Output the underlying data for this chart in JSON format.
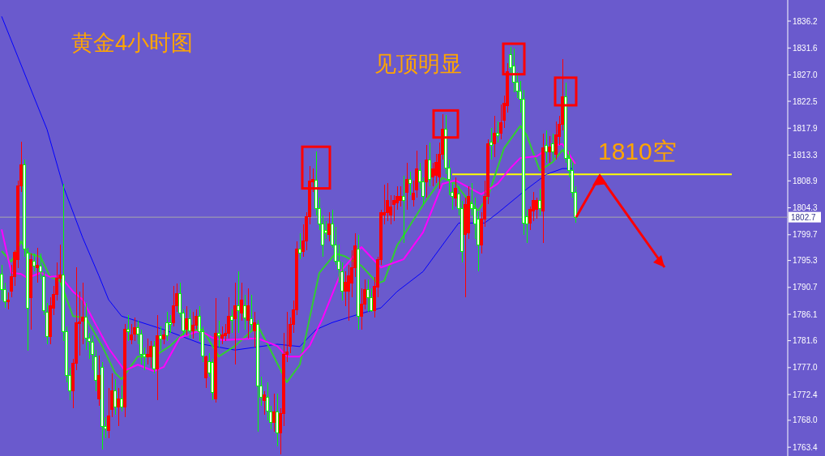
{
  "chart_data": {
    "type": "candlestick",
    "title": "黄金4小时图",
    "annotations": [
      "见顶明显"
    ],
    "tick_labels": "y",
    "categories": [
      null,
      null,
      null,
      null,
      null,
      null,
      null,
      null,
      null,
      null,
      null,
      null,
      null,
      null,
      null,
      null,
      null,
      null,
      null,
      null,
      null,
      null,
      null,
      null,
      null,
      null,
      null,
      null,
      null,
      null,
      null,
      null,
      null,
      null,
      null,
      null,
      null,
      null,
      null,
      null,
      null,
      null,
      null,
      null,
      null,
      null,
      null,
      null,
      null,
      null,
      null,
      null,
      null,
      null,
      null,
      null,
      null,
      null,
      null,
      null,
      null,
      null,
      null,
      null,
      null,
      null,
      null,
      null,
      null,
      null,
      null,
      null,
      null,
      null,
      null,
      null,
      null,
      null,
      null,
      null,
      null,
      null,
      null,
      null,
      null,
      null,
      null,
      null,
      null,
      null,
      null,
      null,
      null,
      null,
      null,
      null,
      null,
      null,
      null,
      null,
      null,
      null,
      null,
      null,
      null,
      null,
      null,
      null,
      null,
      null,
      null,
      null,
      null,
      null,
      null,
      null,
      null,
      null,
      null,
      null,
      null,
      null,
      null,
      null,
      null,
      null,
      null,
      null,
      null,
      null,
      null,
      null,
      null,
      null,
      null,
      null,
      null,
      null,
      null,
      null,
      null,
      null,
      null,
      null,
      null,
      null,
      null,
      null,
      null,
      null,
      null,
      null,
      null,
      null,
      null,
      null,
      null,
      null,
      null,
      null,
      null,
      null,
      null,
      null,
      null,
      null,
      null,
      null,
      null,
      null,
      null,
      null,
      null,
      null,
      null,
      null,
      null,
      null,
      null,
      null,
      null,
      null,
      null,
      null,
      null,
      null,
      null,
      null,
      null,
      null,
      null,
      null,
      null,
      null,
      null,
      null,
      null,
      null,
      null,
      null,
      null,
      null,
      null,
      null,
      null,
      null,
      null,
      null,
      null,
      null,
      null,
      null,
      null,
      null,
      null,
      null,
      null,
      null,
      null,
      null,
      null,
      null,
      null,
      null,
      null,
      null,
      null,
      null,
      null,
      null,
      null,
      null,
      null,
      null,
      null,
      null,
      null,
      null,
      null,
      null,
      null,
      null,
      null
    ],
    "ohlc": [
      [
        1793.0,
        1794.5,
        1788.5,
        1790.4
      ],
      [
        1790.4,
        1791.5,
        1787.2,
        1788.3
      ],
      [
        1788.2,
        1789.8,
        1787.0,
        1788.6
      ],
      [
        1790.0,
        1794.5,
        1789.0,
        1792.5
      ],
      [
        1792.5,
        1797.0,
        1791.0,
        1796.7
      ],
      [
        1795.5,
        1809.0,
        1794.0,
        1808.0
      ],
      [
        1808.0,
        1815.6,
        1807.0,
        1811.7
      ],
      [
        1811.7,
        1812.5,
        1796.0,
        1797.3
      ],
      [
        1796.6,
        1797.5,
        1779.9,
        1787.2
      ],
      [
        1789.0,
        1796.5,
        1783.5,
        1795.5
      ],
      [
        1795.2,
        1796.5,
        1793.5,
        1794.4
      ],
      [
        1794.1,
        1797.5,
        1791.5,
        1794.5
      ],
      [
        1794.4,
        1796.5,
        1792.0,
        1793.4
      ],
      [
        1792.5,
        1793.5,
        1786.0,
        1786.8
      ],
      [
        1786.5,
        1788.0,
        1781.0,
        1782.3
      ],
      [
        1782.3,
        1789.0,
        1781.0,
        1787.5
      ],
      [
        1787.2,
        1791.0,
        1786.0,
        1789.5
      ],
      [
        1789.5,
        1795.0,
        1788.5,
        1792.3
      ],
      [
        1792.3,
        1798.0,
        1791.5,
        1792.8
      ],
      [
        1792.8,
        1808.4,
        1781.5,
        1783.1
      ],
      [
        1783.1,
        1784.0,
        1774.5,
        1775.6
      ],
      [
        1775.6,
        1777.0,
        1771.5,
        1773.0
      ],
      [
        1773.0,
        1778.5,
        1770.0,
        1777.8
      ],
      [
        1777.8,
        1794.1,
        1776.5,
        1784.7
      ],
      [
        1784.5,
        1790.0,
        1779.0,
        1784.8
      ],
      [
        1785.0,
        1791.5,
        1781.0,
        1785.6
      ],
      [
        1785.6,
        1788.0,
        1780.0,
        1782.0
      ],
      [
        1782.0,
        1783.0,
        1778.5,
        1781.5
      ],
      [
        1781.3,
        1782.5,
        1776.5,
        1779.2
      ],
      [
        1778.9,
        1780.0,
        1773.0,
        1774.9
      ],
      [
        1771.6,
        1779.0,
        1770.5,
        1775.6
      ],
      [
        1777.1,
        1778.0,
        1763.0,
        1766.9
      ],
      [
        1766.9,
        1768.5,
        1765.0,
        1766.5
      ],
      [
        1766.2,
        1773.5,
        1765.0,
        1768.8
      ],
      [
        1769.9,
        1776.0,
        1768.5,
        1773.1
      ],
      [
        1773.1,
        1775.0,
        1769.0,
        1770.3
      ],
      [
        1770.3,
        1773.5,
        1767.0,
        1771.6
      ],
      [
        1771.6,
        1774.0,
        1769.5,
        1770.3
      ],
      [
        1770.3,
        1784.5,
        1768.5,
        1783.5
      ],
      [
        1783.5,
        1786.0,
        1781.5,
        1783.2
      ],
      [
        1781.7,
        1784.5,
        1781.0,
        1782.6
      ],
      [
        1782.7,
        1785.5,
        1781.5,
        1783.8
      ],
      [
        1783.8,
        1785.0,
        1781.0,
        1782.7
      ],
      [
        1782.7,
        1783.5,
        1777.5,
        1779.2
      ],
      [
        1779.2,
        1780.5,
        1776.5,
        1778.9
      ],
      [
        1778.9,
        1782.0,
        1777.5,
        1779.3
      ],
      [
        1778.9,
        1781.5,
        1777.0,
        1780.7
      ],
      [
        1780.7,
        1781.5,
        1776.0,
        1776.8
      ],
      [
        1776.8,
        1786.0,
        1771.5,
        1782.4
      ],
      [
        1782.4,
        1784.0,
        1780.0,
        1781.9
      ],
      [
        1781.9,
        1783.5,
        1781.0,
        1782.6
      ],
      [
        1784.7,
        1786.5,
        1781.5,
        1782.4
      ],
      [
        1784.7,
        1786.0,
        1783.0,
        1784.4
      ],
      [
        1784.7,
        1791.0,
        1784.0,
        1787.6
      ],
      [
        1787.6,
        1791.4,
        1786.5,
        1789.6
      ],
      [
        1789.6,
        1791.5,
        1785.5,
        1786.3
      ],
      [
        1786.3,
        1787.0,
        1782.5,
        1783.3
      ],
      [
        1783.5,
        1787.5,
        1782.5,
        1785.4
      ],
      [
        1785.4,
        1787.0,
        1782.0,
        1783.3
      ],
      [
        1783.3,
        1786.5,
        1782.0,
        1784.2
      ],
      [
        1784.2,
        1787.0,
        1783.5,
        1785.8
      ],
      [
        1785.8,
        1787.5,
        1781.5,
        1783.1
      ],
      [
        1783.1,
        1784.0,
        1778.0,
        1779.0
      ],
      [
        1775.3,
        1779.0,
        1773.5,
        1778.8
      ],
      [
        1778.0,
        1779.5,
        1775.5,
        1776.1
      ],
      [
        1777.9,
        1778.5,
        1771.5,
        1772.7
      ],
      [
        1771.6,
        1788.9,
        1771.0,
        1782.8
      ],
      [
        1782.8,
        1785.0,
        1780.5,
        1782.4
      ],
      [
        1782.0,
        1784.0,
        1781.0,
        1782.6
      ],
      [
        1782.4,
        1784.5,
        1781.5,
        1782.8
      ],
      [
        1782.8,
        1789.0,
        1782.0,
        1785.8
      ],
      [
        1785.8,
        1787.0,
        1783.0,
        1785.1
      ],
      [
        1785.4,
        1791.5,
        1777.5,
        1787.6
      ],
      [
        1787.6,
        1793.5,
        1783.0,
        1786.8
      ],
      [
        1786.3,
        1791.5,
        1785.0,
        1788.6
      ],
      [
        1787.5,
        1789.5,
        1783.5,
        1785.5
      ],
      [
        1785.1,
        1790.5,
        1782.0,
        1787.6
      ],
      [
        1785.4,
        1789.5,
        1783.5,
        1784.4
      ],
      [
        1783.3,
        1786.5,
        1780.5,
        1784.7
      ],
      [
        1784.4,
        1785.2,
        1766.0,
        1773.8
      ],
      [
        1773.8,
        1775.5,
        1770.5,
        1772.0
      ],
      [
        1771.4,
        1773.0,
        1769.0,
        1772.4
      ],
      [
        1772.0,
        1774.5,
        1768.0,
        1769.6
      ],
      [
        1769.5,
        1770.5,
        1766.5,
        1767.6
      ],
      [
        1767.6,
        1772.5,
        1766.0,
        1769.5
      ],
      [
        1769.5,
        1772.5,
        1763.5,
        1765.8
      ],
      [
        1765.8,
        1770.0,
        1762.2,
        1769.2
      ],
      [
        1769.2,
        1783.0,
        1767.0,
        1779.3
      ],
      [
        1779.3,
        1786.5,
        1778.0,
        1779.7
      ],
      [
        1780.7,
        1785.5,
        1779.5,
        1784.4
      ],
      [
        1784.4,
        1788.5,
        1783.0,
        1786.9
      ],
      [
        1786.9,
        1798.5,
        1786.0,
        1797.3
      ],
      [
        1797.2,
        1800.0,
        1795.5,
        1796.6
      ],
      [
        1796.9,
        1801.5,
        1796.0,
        1798.6
      ],
      [
        1798.6,
        1803.5,
        1797.0,
        1802.8
      ],
      [
        1802.8,
        1811.5,
        1801.5,
        1808.9
      ],
      [
        1808.8,
        1811.0,
        1807.0,
        1809.1
      ],
      [
        1809.0,
        1813.9,
        1803.0,
        1804.2
      ],
      [
        1804.2,
        1806.0,
        1800.5,
        1801.5
      ],
      [
        1801.5,
        1803.0,
        1796.0,
        1797.9
      ],
      [
        1800.4,
        1802.0,
        1799.0,
        1800.0
      ],
      [
        1799.7,
        1803.5,
        1798.5,
        1801.5
      ],
      [
        1801.5,
        1804.0,
        1797.5,
        1798.0
      ],
      [
        1798.0,
        1801.0,
        1794.5,
        1795.2
      ],
      [
        1795.2,
        1798.0,
        1791.5,
        1793.8
      ],
      [
        1793.4,
        1795.0,
        1788.5,
        1790.0
      ],
      [
        1790.0,
        1793.5,
        1787.5,
        1791.6
      ],
      [
        1790.0,
        1794.5,
        1785.0,
        1792.7
      ],
      [
        1791.4,
        1797.0,
        1789.0,
        1794.1
      ],
      [
        1794.1,
        1800.0,
        1792.5,
        1797.8
      ],
      [
        1797.3,
        1799.7,
        1783.5,
        1785.8
      ],
      [
        1785.8,
        1790.5,
        1783.5,
        1787.9
      ],
      [
        1787.9,
        1792.0,
        1787.0,
        1790.3
      ],
      [
        1790.3,
        1792.0,
        1786.5,
        1788.9
      ],
      [
        1788.9,
        1790.5,
        1786.5,
        1786.8
      ],
      [
        1786.8,
        1792.5,
        1785.5,
        1790.9
      ],
      [
        1790.7,
        1796.0,
        1789.0,
        1795.5
      ],
      [
        1795.5,
        1804.0,
        1794.5,
        1803.5
      ],
      [
        1803.1,
        1808.2,
        1801.5,
        1803.5
      ],
      [
        1803.5,
        1808.5,
        1802.0,
        1805.5
      ],
      [
        1803.0,
        1806.5,
        1801.5,
        1804.5
      ],
      [
        1804.8,
        1806.5,
        1802.0,
        1805.6
      ],
      [
        1805.2,
        1808.0,
        1804.0,
        1806.2
      ],
      [
        1805.6,
        1808.0,
        1804.5,
        1806.3
      ],
      [
        1806.2,
        1809.8,
        1798.3,
        1805.6
      ],
      [
        1807.0,
        1812.0,
        1804.0,
        1809.1
      ],
      [
        1809.1,
        1810.5,
        1806.5,
        1808.4
      ],
      [
        1805.7,
        1809.0,
        1804.5,
        1806.8
      ],
      [
        1807.3,
        1814.0,
        1806.0,
        1811.0
      ],
      [
        1810.7,
        1812.0,
        1807.5,
        1808.7
      ],
      [
        1808.7,
        1809.5,
        1805.0,
        1806.2
      ],
      [
        1808.7,
        1815.0,
        1806.0,
        1812.5
      ],
      [
        1812.5,
        1815.5,
        1808.0,
        1809.1
      ],
      [
        1809.6,
        1812.0,
        1808.0,
        1811.0
      ],
      [
        1809.8,
        1813.5,
        1808.5,
        1812.1
      ],
      [
        1809.6,
        1815.5,
        1807.5,
        1813.5
      ],
      [
        1813.5,
        1820.3,
        1812.5,
        1817.7
      ],
      [
        1817.7,
        1820.1,
        1810.0,
        1811.1
      ],
      [
        1811.1,
        1812.5,
        1806.5,
        1809.1
      ],
      [
        1806.9,
        1808.5,
        1804.0,
        1806.3
      ],
      [
        1806.0,
        1809.5,
        1804.5,
        1807.6
      ],
      [
        1806.6,
        1808.0,
        1803.0,
        1804.2
      ],
      [
        1804.2,
        1805.5,
        1795.0,
        1796.9
      ],
      [
        1799.7,
        1806.0,
        1789.0,
        1804.8
      ],
      [
        1800.0,
        1808.0,
        1799.0,
        1806.3
      ],
      [
        1805.0,
        1808.5,
        1803.0,
        1804.2
      ],
      [
        1804.2,
        1806.0,
        1799.0,
        1801.5
      ],
      [
        1802.4,
        1803.5,
        1793.5,
        1797.9
      ],
      [
        1797.9,
        1803.5,
        1796.5,
        1802.4
      ],
      [
        1802.4,
        1809.0,
        1801.0,
        1806.3
      ],
      [
        1806.3,
        1816.0,
        1805.0,
        1815.2
      ],
      [
        1815.5,
        1818.0,
        1812.5,
        1814.9
      ],
      [
        1815.3,
        1820.0,
        1813.0,
        1817.0
      ],
      [
        1817.0,
        1819.0,
        1815.5,
        1816.6
      ],
      [
        1817.0,
        1822.0,
        1816.0,
        1818.8
      ],
      [
        1819.3,
        1823.5,
        1818.0,
        1822.1
      ],
      [
        1821.8,
        1829.0,
        1820.5,
        1827.6
      ],
      [
        1830.5,
        1831.8,
        1827.0,
        1828.3
      ],
      [
        1828.5,
        1831.5,
        1824.0,
        1825.7
      ],
      [
        1825.7,
        1827.5,
        1823.0,
        1824.2
      ],
      [
        1824.2,
        1826.0,
        1820.5,
        1822.8
      ],
      [
        1822.8,
        1824.5,
        1799.7,
        1801.7
      ],
      [
        1802.8,
        1804.0,
        1798.3,
        1801.5
      ],
      [
        1801.7,
        1804.5,
        1800.5,
        1804.1
      ],
      [
        1803.8,
        1807.0,
        1802.0,
        1805.5
      ],
      [
        1804.1,
        1806.0,
        1802.5,
        1805.6
      ],
      [
        1805.6,
        1807.5,
        1803.0,
        1804.2
      ],
      [
        1803.8,
        1817.0,
        1798.3,
        1814.5
      ],
      [
        1814.9,
        1817.5,
        1812.0,
        1813.9
      ],
      [
        1813.8,
        1816.5,
        1812.0,
        1814.7
      ],
      [
        1815.3,
        1817.0,
        1812.5,
        1813.9
      ],
      [
        1813.5,
        1819.0,
        1812.5,
        1816.7
      ],
      [
        1816.5,
        1820.0,
        1815.0,
        1818.6
      ],
      [
        1818.6,
        1829.7,
        1817.5,
        1823.2
      ],
      [
        1823.2,
        1825.7,
        1812.0,
        1812.8
      ],
      [
        1812.8,
        1814.0,
        1809.5,
        1810.7
      ],
      [
        1810.7,
        1812.0,
        1806.0,
        1806.9
      ],
      [
        1806.9,
        1808.0,
        1801.8,
        1802.7
      ],
      null,
      null,
      null,
      null,
      null,
      null,
      null,
      null,
      null,
      null,
      null,
      null,
      null,
      null,
      null,
      null,
      null,
      null,
      null,
      null,
      null,
      null,
      null,
      null,
      null,
      null,
      null,
      null,
      null,
      null,
      null,
      null,
      null,
      null,
      null,
      null,
      null,
      null,
      null,
      null,
      null,
      null,
      null,
      null,
      null,
      null,
      null,
      null,
      null,
      null,
      null,
      null,
      null,
      null,
      null,
      null,
      null,
      null,
      null,
      null,
      null,
      null,
      null,
      null,
      null
    ],
    "series": [
      {
        "type": "line",
        "color": "#0000ff",
        "values": [
          1837.0,
          null,
          null,
          null,
          null,
          1830.1,
          null,
          null,
          null,
          null,
          1823.2,
          null,
          null,
          null,
          1817.7,
          null,
          null,
          null,
          null,
          1808.0,
          null,
          null,
          null,
          null,
          null,
          1799.2,
          null,
          null,
          null,
          null,
          1792.7,
          null,
          null,
          1788.6,
          null,
          null,
          null,
          1785.8,
          null,
          null,
          null,
          null,
          null,
          null,
          null,
          null,
          null,
          null,
          null,
          null,
          1783.5,
          null,
          null,
          null,
          null,
          null,
          null,
          null,
          null,
          null,
          null,
          null,
          1781.0,
          null,
          null,
          null,
          null,
          null,
          null,
          null,
          null,
          null,
          1780.0,
          null,
          null,
          null,
          null,
          null,
          null,
          null,
          null,
          null,
          null,
          null,
          null,
          1781.0,
          null,
          null,
          null,
          null,
          null,
          null,
          1780.6,
          null,
          null,
          null,
          null,
          1783.5,
          null,
          null,
          null,
          null,
          1784.7,
          null,
          null,
          null,
          null,
          null,
          null,
          null,
          1786.1,
          null,
          null,
          null,
          null,
          null,
          null,
          1787.2,
          null,
          null,
          null,
          null,
          1790.0,
          null,
          null,
          null,
          null,
          null,
          null,
          null,
          1793.4,
          null,
          null,
          null,
          null,
          null,
          null,
          1798.7,
          null,
          null,
          null,
          1801.7,
          null,
          null,
          null,
          null,
          null,
          null,
          null,
          1801.7,
          null,
          null,
          null,
          1803.4,
          null,
          null,
          null,
          null,
          null,
          null,
          null,
          null,
          1807.5,
          null,
          null,
          null,
          null,
          null,
          1810.0,
          null,
          null,
          null,
          null,
          1811.0,
          null,
          null,
          1811.0,
          null,
          null,
          null,
          null,
          null,
          null,
          null,
          null,
          null,
          null,
          null,
          null,
          null,
          null,
          null,
          null,
          null,
          null,
          null,
          null,
          null,
          null,
          null,
          null,
          null,
          null,
          null,
          null,
          null,
          null,
          null,
          null,
          null,
          null,
          null,
          null,
          null,
          null,
          null,
          null,
          null,
          null,
          null,
          null,
          null,
          null,
          null,
          null,
          null,
          null,
          null,
          null,
          null,
          null,
          null,
          null,
          null,
          null,
          null,
          null,
          null,
          null,
          null,
          null,
          null,
          null
        ]
      },
      {
        "type": "line",
        "color": "#32cd32",
        "values": [
          1796.9,
          null,
          null,
          1795.1,
          null,
          1797.3,
          1798.6,
          null,
          1796.6,
          null,
          null,
          null,
          1795.9,
          null,
          null,
          1792.5,
          null,
          null,
          1791.8,
          null,
          null,
          null,
          1785.8,
          null,
          null,
          null,
          1785.5,
          null,
          null,
          null,
          null,
          1780.7,
          null,
          null,
          null,
          1776.1,
          null,
          1775.0,
          null,
          null,
          null,
          null,
          1778.9,
          null,
          null,
          null,
          null,
          1778.9,
          null,
          null,
          null,
          null,
          1780.7,
          null,
          null,
          null,
          null,
          1783.3,
          null,
          null,
          null,
          null,
          1783.5,
          null,
          null,
          null,
          null,
          1778.9,
          null,
          null,
          null,
          null,
          1780.7,
          null,
          null,
          null,
          null,
          null,
          null,
          1784.2,
          null,
          1782.1,
          null,
          null,
          null,
          null,
          null,
          null,
          1774.5,
          null,
          null,
          null,
          1777.5,
          null,
          null,
          1785.4,
          null,
          null,
          1793.2,
          null,
          null,
          null,
          null,
          1796.5,
          null,
          null,
          1796.0,
          null,
          null,
          null,
          null,
          1794.4,
          null,
          null,
          null,
          null,
          1791.4,
          null,
          1791.8,
          null,
          null,
          null,
          1797.9,
          1798.7,
          null,
          null,
          null,
          null,
          null,
          null,
          1804.8,
          null,
          null,
          null,
          null,
          null,
          1809.4,
          null,
          null,
          null,
          1808.4,
          null,
          null,
          null,
          1805.6,
          null,
          null,
          1803.8,
          null,
          null,
          1806.2,
          null,
          null,
          null,
          null,
          1814.5,
          null,
          null,
          null,
          null,
          1818.3,
          null,
          1816.7,
          null,
          null,
          null,
          1810.7,
          null,
          null,
          null,
          1812.1,
          null,
          null,
          1814.2,
          null,
          null,
          null,
          1811.7,
          null,
          null,
          null,
          null,
          null,
          null,
          null,
          null,
          null,
          null,
          null,
          null,
          null,
          null,
          null,
          null,
          null,
          null,
          null,
          null,
          null,
          null,
          null,
          null,
          null,
          null,
          null,
          null,
          null,
          null,
          null,
          null,
          null,
          null,
          null,
          null,
          null,
          null,
          null,
          null,
          null,
          null,
          null,
          null,
          null,
          null,
          null,
          null,
          null,
          null,
          null,
          null,
          null,
          null,
          null,
          null,
          null,
          null,
          null,
          null,
          null,
          null,
          null,
          null,
          null
        ]
      },
      {
        "type": "line",
        "color": "#ff00ff",
        "values": [
          1800.6,
          null,
          null,
          1793.2,
          null,
          null,
          1793.0,
          null,
          1792.3,
          null,
          null,
          null,
          1793.2,
          null,
          null,
          1792.5,
          null,
          null,
          1792.7,
          null,
          null,
          null,
          1790.0,
          null,
          null,
          1788.6,
          null,
          null,
          null,
          1784.4,
          null,
          null,
          null,
          1780.3,
          null,
          null,
          null,
          null,
          1776.5,
          null,
          null,
          null,
          1777.5,
          null,
          null,
          null,
          null,
          1776.4,
          null,
          null,
          1777.1,
          null,
          null,
          null,
          null,
          1782.1,
          null,
          null,
          null,
          null,
          1783.1,
          null,
          1783.1,
          null,
          null,
          1782.1,
          null,
          null,
          1781.7,
          null,
          null,
          null,
          null,
          null,
          null,
          null,
          null,
          null,
          null,
          1782.0,
          null,
          null,
          null,
          null,
          null,
          1780.7,
          null,
          null,
          1778.9,
          null,
          null,
          null,
          1778.9,
          null,
          null,
          1780.7,
          null,
          null,
          null,
          1785.4,
          null,
          null,
          null,
          null,
          null,
          1793.7,
          null,
          null,
          null,
          null,
          null,
          1797.6,
          null,
          null,
          null,
          null,
          null,
          1794.1,
          null,
          null,
          null,
          null,
          1795.1,
          null,
          1795.5,
          null,
          null,
          null,
          null,
          null,
          1800.1,
          null,
          null,
          null,
          null,
          null,
          1808.4,
          null,
          null,
          null,
          1809.0,
          null,
          null,
          null,
          null,
          null,
          null,
          null,
          1806.6,
          null,
          null,
          null,
          null,
          1808.4,
          null,
          null,
          null,
          1811.1,
          null,
          null,
          1812.8,
          null,
          null,
          null,
          null,
          1813.1,
          null,
          null,
          null,
          null,
          1814.9,
          null,
          null,
          1815.2,
          null,
          null,
          null,
          1811.8,
          null,
          null,
          null,
          null,
          null,
          null,
          null,
          null,
          null,
          null,
          null,
          null,
          null,
          null,
          null,
          null,
          null,
          null,
          null,
          null,
          null,
          null,
          null,
          null,
          null,
          null,
          null,
          null,
          null,
          null,
          null,
          null,
          null,
          null,
          null,
          null,
          null,
          null,
          null,
          null,
          null,
          null,
          null,
          null,
          null,
          null,
          null,
          null,
          null,
          null,
          null,
          null,
          null,
          null,
          null,
          null,
          null,
          null,
          null,
          null,
          null,
          null,
          null,
          null,
          null
        ]
      }
    ],
    "ylim": [
      1761.9,
      1839.8
    ],
    "yticks": [
      {
        "value": 1836.2,
        "label": "1836.2"
      },
      {
        "value": 1831.6,
        "label": "1831.6"
      },
      {
        "value": 1827.0,
        "label": "1827.0"
      },
      {
        "value": 1822.5,
        "label": "1822.5"
      },
      {
        "value": 1817.9,
        "label": "1817.9"
      },
      {
        "value": 1813.3,
        "label": "1813.3"
      },
      {
        "value": 1808.9,
        "label": "1808.9"
      },
      {
        "value": 1804.3,
        "label": "1804.3"
      },
      {
        "value": 1799.7,
        "label": "1799.7"
      },
      {
        "value": 1795.3,
        "label": "1795.3"
      },
      {
        "value": 1790.7,
        "label": "1790.7"
      },
      {
        "value": 1786.1,
        "label": "1786.1"
      },
      {
        "value": 1781.6,
        "label": "1781.6"
      },
      {
        "value": 1777.0,
        "label": "1777.0"
      },
      {
        "value": 1772.4,
        "label": "1772.4"
      },
      {
        "value": 1768.0,
        "label": "1768.0"
      },
      {
        "value": 1763.4,
        "label": "1763.4"
      }
    ],
    "ref_lines": [
      {
        "axis": "y",
        "value": 1802.7,
        "label": "1802.7",
        "color": "#a9a9a9"
      },
      {
        "axis": "y",
        "value": 1810,
        "label": "1810空",
        "color": "#ffff00"
      }
    ]
  }
}
